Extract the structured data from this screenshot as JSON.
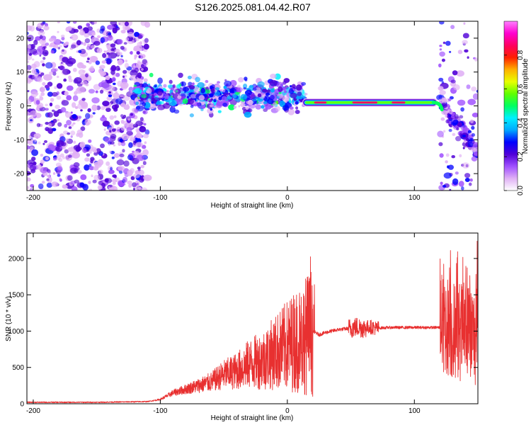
{
  "figure_title": "S126.2025.081.04.42.R07",
  "chart_data": [
    {
      "type": "heatmap",
      "xlabel": "Height of straight line (km)",
      "ylabel": "Frequency (Hz)",
      "xlim": [
        -205,
        150
      ],
      "ylim": [
        -25,
        25
      ],
      "xticks": [
        -200,
        -100,
        0,
        100
      ],
      "yticks": [
        -20,
        -10,
        0,
        10,
        20
      ],
      "colorbar": {
        "label": "Normalized spectral amplitude",
        "range": [
          0,
          1
        ],
        "ticks": [
          "0.0",
          "0.2",
          "0.4",
          "0.6",
          "0.8"
        ],
        "colors": [
          "#ffffff",
          "#e0b0f5",
          "#a050ff",
          "#5000d8",
          "#0000ff",
          "#00a8ff",
          "#00f0ff",
          "#00ff60",
          "#60ff00",
          "#e8ff00",
          "#ffb000",
          "#ff2000",
          "#ff0060",
          "#ff00d0",
          "#ff80ff"
        ]
      },
      "regions": [
        {
          "x_range": [
            -205,
            -110
          ],
          "freq_center": 0,
          "freq_spread": 25,
          "amplitude": 0.25,
          "description": "diffuse"
        },
        {
          "x_range": [
            -120,
            15
          ],
          "freq_center": 3,
          "freq_spread": 6,
          "amplitude": 0.35
        },
        {
          "x_range": [
            15,
            120
          ],
          "freq_center": 1,
          "freq_spread": 1,
          "amplitude": 0.85
        },
        {
          "x_range": [
            120,
            150
          ],
          "freq_center": -5,
          "freq_spread": 15,
          "amplitude": 0.3
        }
      ]
    },
    {
      "type": "line",
      "xlabel": "Height of straight line (km)",
      "ylabel": "SNR (10 * v/v)",
      "xlim": [
        -205,
        150
      ],
      "ylim": [
        0,
        2350
      ],
      "xticks": [
        -200,
        -100,
        0,
        100
      ],
      "yticks": [
        0,
        500,
        1000,
        1500,
        2000
      ],
      "color": "#e83030",
      "series": [
        {
          "x": [
            -205,
            -190,
            -170,
            -150,
            -130,
            -110,
            -100,
            -90,
            -80,
            -70,
            -60,
            -50,
            -40,
            -30,
            -20,
            -10,
            0,
            10,
            20,
            25,
            30,
            40,
            50,
            55,
            60,
            65,
            70,
            80,
            90,
            100,
            110,
            120,
            125,
            130,
            140,
            150
          ],
          "y": [
            20,
            20,
            20,
            20,
            25,
            30,
            60,
            150,
            200,
            250,
            300,
            400,
            450,
            550,
            600,
            700,
            800,
            900,
            1000,
            950,
            980,
            1020,
            1040,
            1060,
            1040,
            1060,
            1040,
            1050,
            1050,
            1050,
            1050,
            1050,
            1100,
            1000,
            1000,
            900
          ]
        }
      ]
    }
  ]
}
